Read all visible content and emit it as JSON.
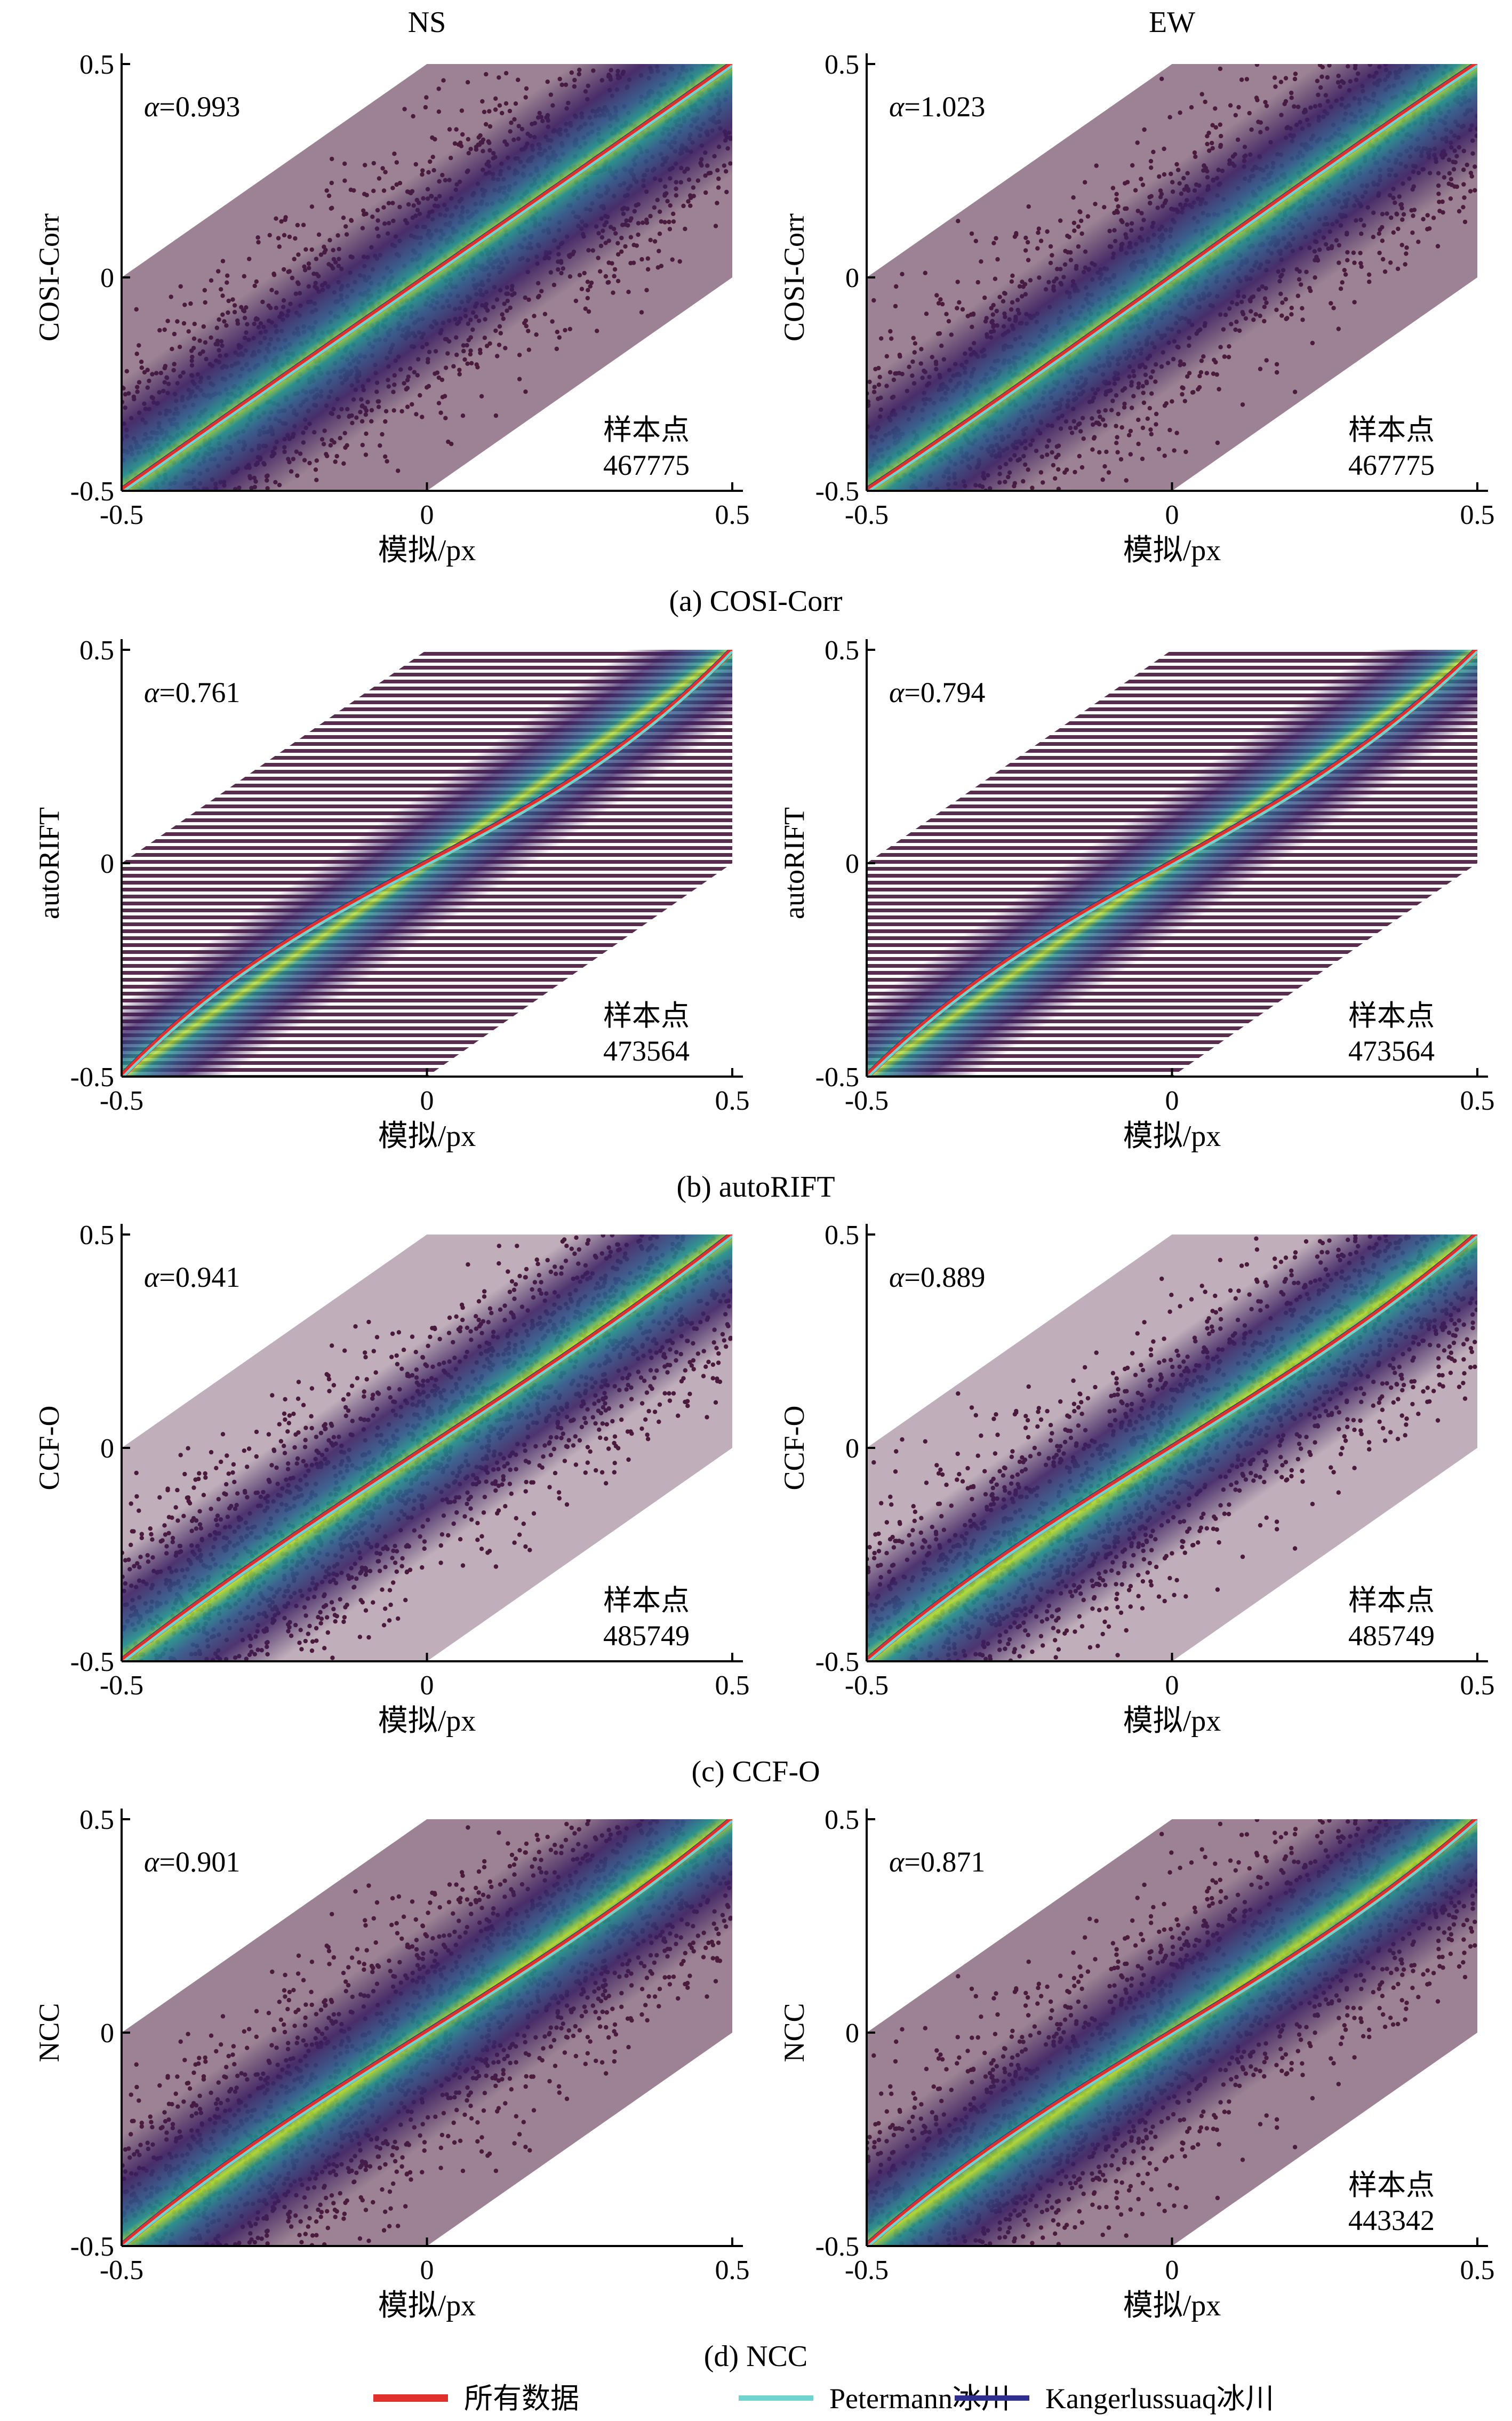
{
  "column_titles": [
    "NS",
    "EW"
  ],
  "xlabel": "模拟/px",
  "sample_label": "样本点",
  "alpha_prefix": "α",
  "colors": {
    "all_data": "#e0302a",
    "petermann": "#6fd3cf",
    "kangerlussuaq": "#2f2f8f",
    "scatter_outer": "#4a1b3d",
    "density_low": "#3b1c5a",
    "density_mid": "#21918c",
    "density_high": "#fde725"
  },
  "legend": [
    {
      "label": "所有数据",
      "color": "#e0302a"
    },
    {
      "label": "Petermann冰川",
      "color": "#6fd3cf"
    },
    {
      "label": "Kangerlussuaq冰川",
      "color": "#2f2f8f"
    }
  ],
  "chart_data": [
    {
      "type": "scatter",
      "group": 0,
      "column": "NS",
      "ylabel": "COSI-Corr",
      "xlabel": "模拟/px",
      "caption": "(a) COSI-Corr",
      "alpha_text": "=0.993",
      "alpha": 0.993,
      "sample_count": "467775",
      "xlim": [
        -0.5,
        0.5
      ],
      "ylim": [
        -0.5,
        0.5
      ],
      "xticks": [
        "-0.5",
        "0",
        "0.5"
      ],
      "yticks": [
        "-0.5",
        "0",
        "0.5"
      ],
      "style": "cosi"
    },
    {
      "type": "scatter",
      "group": 0,
      "column": "EW",
      "ylabel": "COSI-Corr",
      "xlabel": "模拟/px",
      "alpha_text": "=1.023",
      "alpha": 1.023,
      "sample_count": "467775",
      "xlim": [
        -0.5,
        0.5
      ],
      "ylim": [
        -0.5,
        0.5
      ],
      "xticks": [
        "-0.5",
        "0",
        "0.5"
      ],
      "yticks": [
        "-0.5",
        "0",
        "0.5"
      ],
      "style": "cosi"
    },
    {
      "type": "scatter",
      "group": 1,
      "column": "NS",
      "ylabel": "autoRIFT",
      "xlabel": "模拟/px",
      "caption": "(b) autoRIFT",
      "alpha_text": "=0.761",
      "alpha": 0.761,
      "sample_count": "473564",
      "xlim": [
        -0.5,
        0.5
      ],
      "ylim": [
        -0.5,
        0.5
      ],
      "xticks": [
        "-0.5",
        "0",
        "0.5"
      ],
      "yticks": [
        "-0.5",
        "0",
        "0.5"
      ],
      "style": "autorift"
    },
    {
      "type": "scatter",
      "group": 1,
      "column": "EW",
      "ylabel": "autoRIFT",
      "xlabel": "模拟/px",
      "alpha_text": "=0.794",
      "alpha": 0.794,
      "sample_count": "473564",
      "xlim": [
        -0.5,
        0.5
      ],
      "ylim": [
        -0.5,
        0.5
      ],
      "xticks": [
        "-0.5",
        "0",
        "0.5"
      ],
      "yticks": [
        "-0.5",
        "0",
        "0.5"
      ],
      "style": "autorift"
    },
    {
      "type": "scatter",
      "group": 2,
      "column": "NS",
      "ylabel": "CCF-O",
      "xlabel": "模拟/px",
      "caption": "(c) CCF-O",
      "alpha_text": "=0.941",
      "alpha": 0.941,
      "sample_count": "485749",
      "xlim": [
        -0.5,
        0.5
      ],
      "ylim": [
        -0.5,
        0.5
      ],
      "xticks": [
        "-0.5",
        "0",
        "0.5"
      ],
      "yticks": [
        "-0.5",
        "0",
        "0.5"
      ],
      "style": "ccf"
    },
    {
      "type": "scatter",
      "group": 2,
      "column": "EW",
      "ylabel": "CCF-O",
      "xlabel": "模拟/px",
      "alpha_text": "=0.889",
      "alpha": 0.889,
      "sample_count": "485749",
      "xlim": [
        -0.5,
        0.5
      ],
      "ylim": [
        -0.5,
        0.5
      ],
      "xticks": [
        "-0.5",
        "0",
        "0.5"
      ],
      "yticks": [
        "-0.5",
        "0",
        "0.5"
      ],
      "style": "ccf"
    },
    {
      "type": "scatter",
      "group": 3,
      "column": "NS",
      "ylabel": "NCC",
      "xlabel": "模拟/px",
      "caption": "(d) NCC",
      "alpha_text": "=0.901",
      "alpha": 0.901,
      "sample_count": "",
      "xlim": [
        -0.5,
        0.5
      ],
      "ylim": [
        -0.5,
        0.5
      ],
      "xticks": [
        "-0.5",
        "0",
        "0.5"
      ],
      "yticks": [
        "-0.5",
        "0",
        "0.5"
      ],
      "style": "cosi"
    },
    {
      "type": "scatter",
      "group": 3,
      "column": "EW",
      "ylabel": "NCC",
      "xlabel": "模拟/px",
      "alpha_text": "=0.871",
      "alpha": 0.871,
      "sample_count": "443342",
      "xlim": [
        -0.5,
        0.5
      ],
      "ylim": [
        -0.5,
        0.5
      ],
      "xticks": [
        "-0.5",
        "0",
        "0.5"
      ],
      "yticks": [
        "-0.5",
        "0",
        "0.5"
      ],
      "style": "cosi"
    }
  ]
}
